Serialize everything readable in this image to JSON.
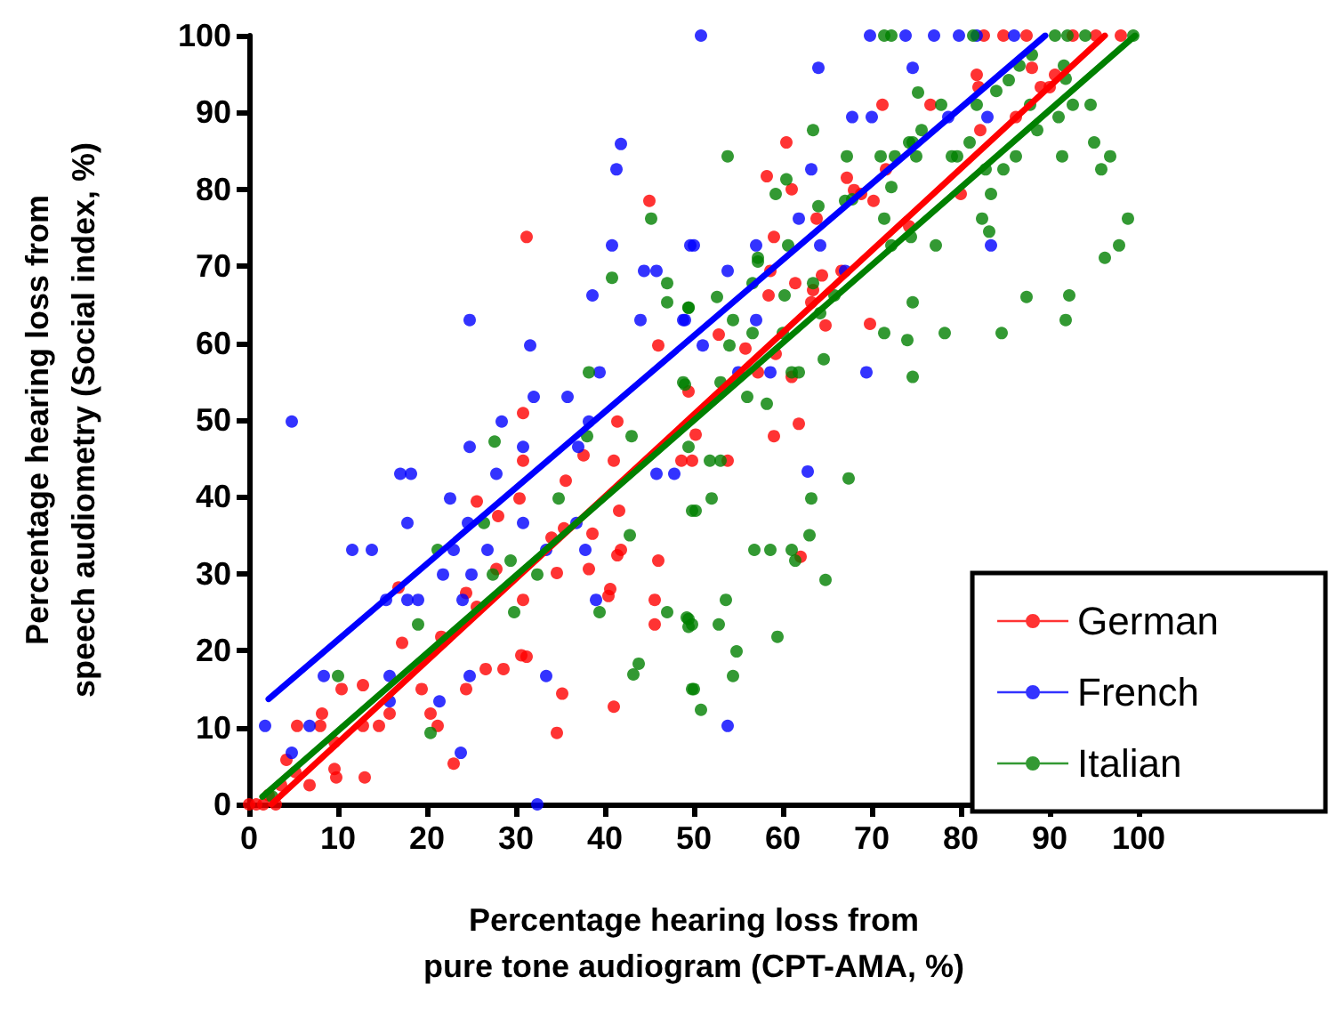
{
  "chart_data": {
    "type": "scatter",
    "xlabel": "Percentage hearing loss from pure tone audiogram (CPT-AMA, %)",
    "ylabel": "Percentage hearing loss from speech audiometry (Social index, %)",
    "xlim": [
      0,
      100
    ],
    "ylim": [
      0,
      100
    ],
    "xticks": [
      0,
      10,
      20,
      30,
      40,
      50,
      60,
      70,
      80,
      90,
      100
    ],
    "yticks": [
      0,
      10,
      20,
      30,
      40,
      50,
      60,
      70,
      80,
      90,
      100
    ],
    "grid": false,
    "legend": "bottom right",
    "marker": "circle",
    "series": [
      {
        "name": "German",
        "color": "#ff0000",
        "x": [
          31.2,
          45,
          46,
          30.8,
          41.4,
          82.6,
          84.8,
          87.4,
          92.6,
          95.2,
          98,
          88,
          81.8,
          90.6,
          82,
          89,
          90,
          71.2,
          76.6,
          82.2,
          86.2,
          60.4,
          58.2,
          61,
          67.2,
          68,
          68.8,
          70.2,
          71.6,
          63.8,
          80,
          59,
          74.2,
          58.6,
          61.4,
          63.4,
          64.4,
          66.6,
          58.4,
          63.2,
          52.8,
          55.8,
          59.2,
          64.8,
          69.8,
          57.2,
          61,
          49.4,
          61.8,
          30.8,
          41,
          37.6,
          35.6,
          25.6,
          30.4,
          28,
          41.6,
          34,
          35.4,
          38.6,
          41.4,
          41.8,
          38.2,
          34.6,
          46,
          27.8,
          16.8,
          24.4,
          25.6,
          30.8,
          40.6,
          40.4,
          45.6,
          45.6,
          21.6,
          17.2,
          26.6,
          28.6,
          30.6,
          31.2,
          19.4,
          24.4,
          10.4,
          12.8,
          8.2,
          15.8,
          20.4,
          5.4,
          8,
          12.8,
          14.6,
          21.2,
          35.2,
          41,
          34.6,
          9.6,
          4.2,
          5.2,
          6.8,
          9.6,
          9.8,
          13,
          23,
          3.6,
          0,
          0.8,
          1.6,
          3,
          2.2,
          50.2,
          59,
          48.6,
          49.8,
          53.8,
          62
        ],
        "values": [
          73.8,
          78.5,
          59.7,
          50.9,
          49.8,
          100,
          100,
          100,
          100,
          100,
          100,
          95.8,
          94.9,
          94.9,
          93.3,
          93.3,
          93.3,
          91,
          91,
          87.7,
          89.4,
          86.1,
          81.7,
          80,
          81.5,
          79.9,
          79.4,
          78.5,
          82.6,
          76.2,
          79.4,
          73.8,
          75.2,
          69.4,
          67.8,
          66.9,
          68.8,
          69.4,
          66.2,
          65.3,
          61.1,
          59.3,
          58.6,
          62.3,
          62.5,
          56.2,
          55.6,
          53.7,
          49.5,
          44.7,
          44.7,
          45.4,
          42.1,
          39.4,
          39.8,
          37.5,
          38.2,
          34.7,
          35.9,
          35.2,
          32.4,
          33.1,
          30.6,
          30.1,
          31.7,
          30.6,
          28.2,
          27.5,
          25.7,
          26.6,
          28,
          27.1,
          26.6,
          23.4,
          21.8,
          21,
          17.6,
          17.6,
          19.4,
          19.2,
          15,
          15,
          15,
          15.5,
          11.8,
          11.8,
          11.8,
          10.2,
          10.2,
          10.2,
          10.2,
          10.2,
          14.4,
          12.7,
          9.3,
          8.1,
          5.8,
          4.2,
          2.5,
          4.6,
          3.5,
          3.5,
          5.3,
          2.5,
          0,
          0,
          0,
          0,
          1.2,
          48.1,
          47.9,
          44.7,
          44.7,
          44.7,
          32.2
        ]
      },
      {
        "name": "French",
        "color": "#0000ff",
        "x": [
          41.8,
          41.3,
          40.8,
          24.8,
          31.6,
          38.6,
          44.4,
          45.8,
          44,
          48.8,
          49.6,
          39.4,
          32,
          35.8,
          28.4,
          4.8,
          38.2,
          50.8,
          69.8,
          73.8,
          77,
          79.8,
          81.8,
          86,
          64,
          74.6,
          67.8,
          70,
          78.6,
          83,
          63.2,
          61.8,
          50,
          57,
          64.2,
          53.8,
          67,
          49,
          57,
          51,
          55,
          58.6,
          69.4,
          83.4,
          30.8,
          24.8,
          37,
          17,
          18.2,
          27.8,
          45.8,
          47.8,
          22.6,
          17.8,
          24.6,
          30.8,
          36.8,
          11.6,
          13.8,
          23,
          26.8,
          33.4,
          37.8,
          21.8,
          25,
          15.4,
          17.8,
          19,
          24,
          39,
          8.4,
          15.8,
          15.8,
          21.4,
          33.4,
          24.8,
          1.8,
          6.8,
          4.8,
          23.8,
          32.4,
          62.8,
          53.8
        ],
        "values": [
          85.9,
          82.6,
          72.7,
          63,
          59.7,
          66.2,
          69.4,
          69.4,
          63,
          63,
          72.7,
          56.2,
          53,
          53,
          49.8,
          49.8,
          49.8,
          100,
          100,
          100,
          100,
          100,
          100,
          100,
          95.8,
          95.8,
          89.4,
          89.4,
          89.4,
          89.4,
          82.6,
          76.2,
          72.7,
          72.7,
          72.7,
          69.4,
          69.4,
          63,
          63,
          59.7,
          56.2,
          56.2,
          56.2,
          72.7,
          46.5,
          46.5,
          46.5,
          43,
          43,
          43,
          43,
          43,
          39.8,
          36.6,
          36.6,
          36.6,
          36.6,
          33.1,
          33.1,
          33.1,
          33.1,
          33.1,
          33.1,
          29.9,
          29.9,
          26.6,
          26.6,
          26.6,
          26.6,
          26.6,
          16.7,
          16.7,
          13.4,
          13.4,
          16.7,
          16.7,
          10.2,
          10.2,
          6.7,
          6.7,
          0,
          43.3,
          10.2
        ]
      },
      {
        "name": "Italian",
        "color": "#008000",
        "x": [
          45.2,
          40.8,
          47,
          47,
          49.4,
          38.2,
          49,
          71.4,
          72.2,
          81.4,
          90.6,
          92,
          94,
          99.4,
          88,
          86.6,
          91.6,
          85.4,
          75.2,
          77.8,
          84,
          91.8,
          94.6,
          92.6,
          87.8,
          81.8,
          63.4,
          75.6,
          88.6,
          91,
          74.2,
          74.6,
          81,
          53.8,
          67.2,
          71,
          72.6,
          75,
          79,
          79.6,
          86.2,
          91.4,
          95,
          96.8,
          95.8,
          82.8,
          84.8,
          60.4,
          59.2,
          64,
          67.8,
          67,
          72.2,
          83.4,
          71.4,
          82.4,
          83.2,
          98.8,
          97.8,
          96.2,
          57.2,
          57.2,
          60.6,
          77.2,
          74.4,
          72.2,
          56.6,
          60.2,
          65.8,
          63.4,
          74.6,
          87.4,
          92.2,
          91.8,
          52.6,
          49.4,
          54.4,
          56.6,
          71.4,
          74,
          78.2,
          84.6,
          54,
          60,
          64.2,
          64.6,
          74.6,
          61,
          61.8,
          48.8,
          53,
          56,
          58.2,
          27.6,
          38,
          43,
          34.8,
          26.4,
          21.2,
          27.4,
          29.4,
          32.4,
          42.8,
          29.8,
          39.4,
          47,
          49.4,
          49.4,
          49.8,
          19,
          10,
          43.8,
          43.2,
          49.8,
          20.4,
          2.6,
          49.4,
          51.8,
          53,
          67.4,
          63.2,
          52,
          50.2,
          63,
          56.8,
          58.6,
          61,
          61.4,
          64.8,
          53.6,
          49.2,
          49.8,
          52.8,
          59.4,
          54.8,
          54.4,
          50,
          50.8
        ],
        "values": [
          76.2,
          68.5,
          67.8,
          65.3,
          64.6,
          56.2,
          54.6,
          100,
          100,
          100,
          100,
          100,
          100,
          100,
          97.5,
          96.1,
          96.1,
          94.2,
          92.6,
          91,
          92.8,
          94.4,
          91,
          91,
          91,
          91,
          87.7,
          87.7,
          87.7,
          89.4,
          86.1,
          86.1,
          86.1,
          84.3,
          84.3,
          84.3,
          84.3,
          84.3,
          84.3,
          84.3,
          84.3,
          84.3,
          86.1,
          84.3,
          82.6,
          82.6,
          82.6,
          81.3,
          79.4,
          77.8,
          78.7,
          78.5,
          80.3,
          79.4,
          76.2,
          76.2,
          74.5,
          76.2,
          72.7,
          71.1,
          71.1,
          70.6,
          72.7,
          72.7,
          73.8,
          72.7,
          67.8,
          66.2,
          66.2,
          67.8,
          65.3,
          66,
          66.2,
          63,
          66,
          64.6,
          63,
          61.3,
          61.3,
          60.4,
          61.3,
          61.3,
          59.7,
          61.3,
          63.9,
          57.9,
          55.6,
          56.2,
          56.2,
          54.9,
          54.9,
          53,
          52.1,
          47.2,
          47.9,
          47.9,
          39.8,
          36.6,
          33.1,
          29.9,
          31.7,
          29.9,
          35,
          25,
          25,
          25,
          24.1,
          23.1,
          38.2,
          23.4,
          16.7,
          18.3,
          16.9,
          15,
          9.3,
          1,
          46.5,
          44.7,
          44.7,
          42.4,
          39.8,
          39.8,
          38.2,
          35,
          33.1,
          33.1,
          33.1,
          31.7,
          29.2,
          26.6,
          24.3,
          23.4,
          23.4,
          21.8,
          19.9,
          16.7,
          15,
          12.3
        ]
      },
      {
        "type": "line",
        "marker": "none",
        "color": "#0000ff",
        "x": [
          2.2,
          89.5
        ],
        "values": [
          13.7,
          100
        ]
      },
      {
        "type": "line",
        "marker": "none",
        "color": "#ff0000",
        "x": [
          2.5,
          96.2
        ],
        "values": [
          0,
          100
        ]
      },
      {
        "type": "line",
        "marker": "none",
        "color": "#008000",
        "x": [
          1.5,
          99.6
        ],
        "values": [
          1,
          100
        ]
      }
    ]
  }
}
